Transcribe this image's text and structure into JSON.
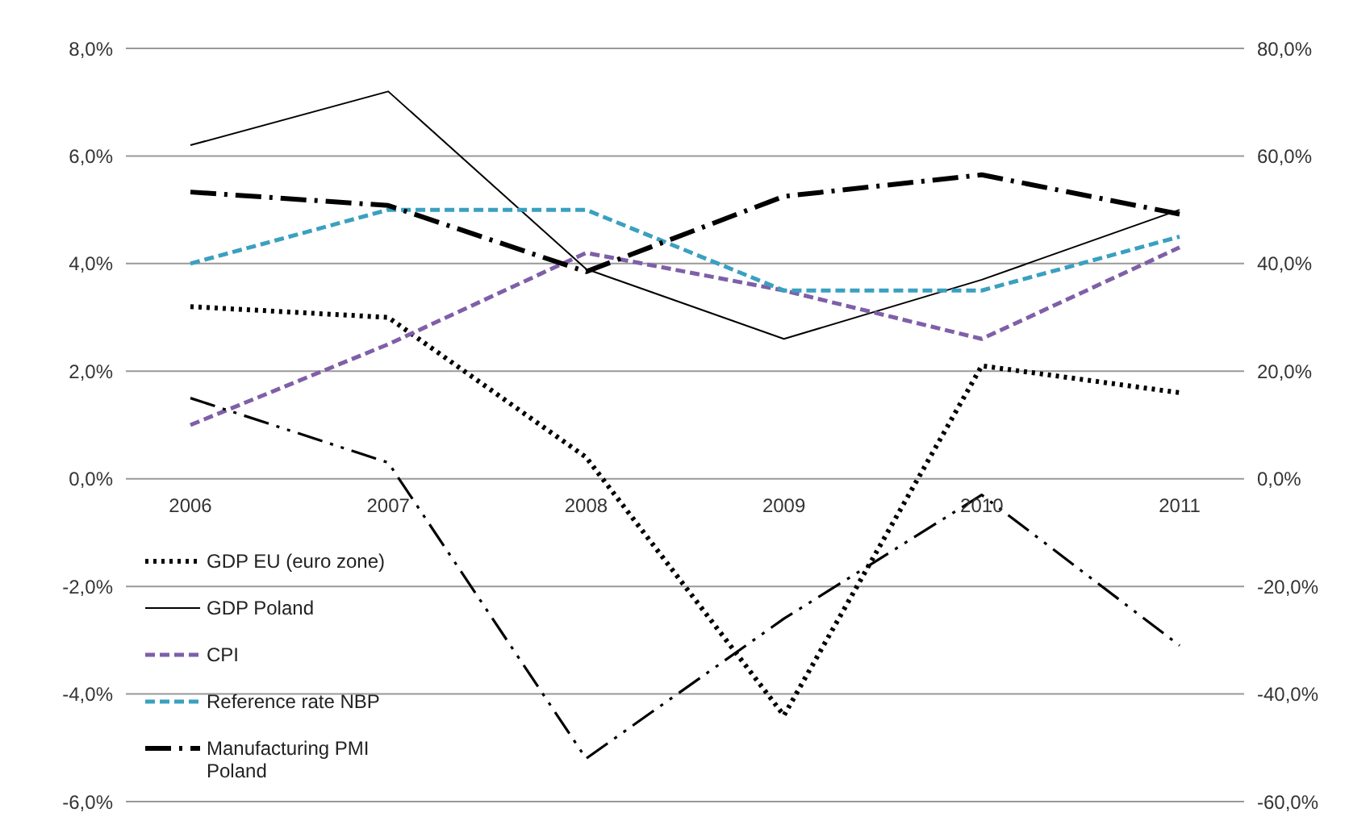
{
  "chart_data": {
    "type": "line",
    "categories": [
      "2006",
      "2007",
      "2008",
      "2009",
      "2010",
      "2011"
    ],
    "series": [
      {
        "name": "GDP EU (euro zone)",
        "color": "#000000",
        "line_style": "dotted",
        "values": [
          3.2,
          3.0,
          0.4,
          -4.4,
          2.1,
          1.6
        ]
      },
      {
        "name": "GDP Poland",
        "color": "#000000",
        "line_style": "solid",
        "values": [
          6.2,
          7.2,
          3.9,
          2.6,
          3.7,
          5.0
        ]
      },
      {
        "name": "CPI",
        "color": "#7f5fa8",
        "line_style": "dashed",
        "values": [
          1.0,
          2.5,
          4.2,
          3.5,
          2.6,
          4.3
        ]
      },
      {
        "name": "Reference rate NBP",
        "color": "#3aa0c0",
        "line_style": "dashed",
        "values": [
          4.0,
          5.0,
          5.0,
          3.5,
          3.5,
          4.5
        ]
      },
      {
        "name": "Manufacturing PMI Poland",
        "color": "#000000",
        "line_style": "dashdot",
        "axis": "y2",
        "values": [
          53.3,
          50.8,
          38.5,
          52.5,
          56.5,
          49.2
        ]
      },
      {
        "color": "#000000",
        "line_style": "dashdotdot",
        "axis": "y2",
        "values": [
          15,
          3,
          -52,
          -26,
          -3,
          -31
        ]
      }
    ],
    "ylim": [
      -6,
      8
    ],
    "yticks": [
      {
        "value": -6,
        "label": "-6,0%"
      },
      {
        "value": -4,
        "label": "-4,0%"
      },
      {
        "value": -2,
        "label": "-2,0%"
      },
      {
        "value": 0,
        "label": "0,0%"
      },
      {
        "value": 2,
        "label": "2,0%"
      },
      {
        "value": 4,
        "label": "4,0%"
      },
      {
        "value": 6,
        "label": "6,0%"
      },
      {
        "value": 8,
        "label": "8,0%"
      }
    ],
    "y2lim": [
      -60,
      80
    ],
    "y2ticks": [
      {
        "value": -60,
        "label": "-60,0%"
      },
      {
        "value": -40,
        "label": "-40,0%"
      },
      {
        "value": -20,
        "label": "-20,0%"
      },
      {
        "value": 0,
        "label": "0,0%"
      },
      {
        "value": 20,
        "label": "20,0%"
      },
      {
        "value": 40,
        "label": "40,0%"
      },
      {
        "value": 60,
        "label": "60,0%"
      },
      {
        "value": 80,
        "label": "80,0%"
      }
    ],
    "grid": "y",
    "legend": "bottom left",
    "marker": "none"
  }
}
